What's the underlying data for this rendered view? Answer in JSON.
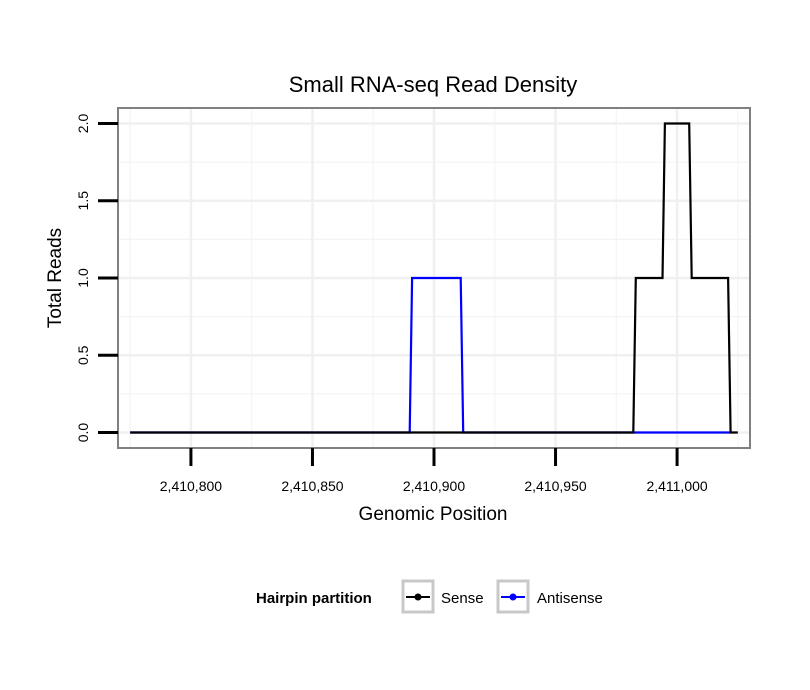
{
  "chart_data": {
    "type": "line",
    "title": "Small RNA-seq Read Density",
    "xlabel": "Genomic Position",
    "ylabel": "Total Reads",
    "xlim": [
      2410770,
      2411030
    ],
    "ylim": [
      -0.1,
      2.1
    ],
    "x_ticks": [
      2410800,
      2410850,
      2410900,
      2410950,
      2411000
    ],
    "x_tick_labels": [
      "2,410,800",
      "2,410,850",
      "2,410,900",
      "2,410,950",
      "2,411,000"
    ],
    "y_ticks": [
      0.0,
      0.5,
      1.0,
      1.5,
      2.0
    ],
    "y_tick_labels": [
      "0.0",
      "0.5",
      "1.0",
      "1.5",
      "2.0"
    ],
    "grid": true,
    "legend": {
      "title": "Hairpin partition",
      "position": "bottom"
    },
    "series": [
      {
        "name": "Sense",
        "color": "#000000",
        "x": [
          2410775,
          2410982,
          2410983,
          2410994,
          2410995,
          2411005,
          2411006,
          2411021,
          2411022,
          2411025
        ],
        "y": [
          0,
          0,
          1,
          1,
          2,
          2,
          1,
          1,
          0,
          0
        ]
      },
      {
        "name": "Antisense",
        "color": "#0000ff",
        "x": [
          2410775,
          2410890,
          2410891,
          2410911,
          2410912,
          2411022
        ],
        "y": [
          0,
          0,
          1,
          1,
          0,
          0
        ]
      }
    ]
  }
}
